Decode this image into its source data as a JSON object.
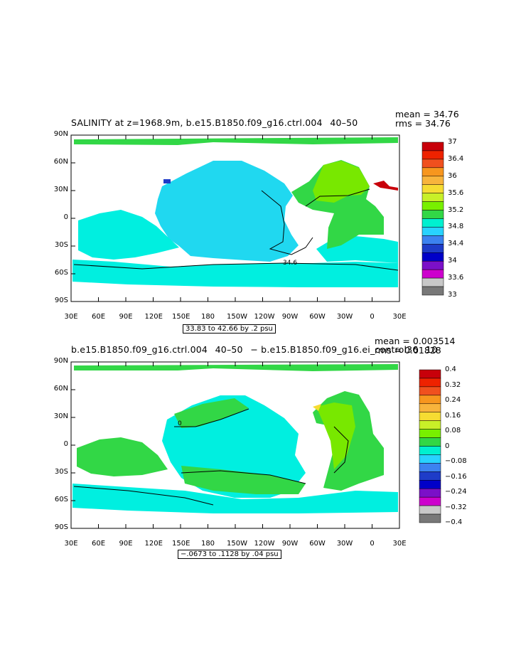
{
  "panel1": {
    "title": "SALINITY at z=1968.9m, b.e15.B1850.f09_g16.ctrl.004   40–50 ",
    "mean": "mean = 34.76",
    "rms": "rms = 34.76",
    "range": "33.83 to 42.66 by .2 psu",
    "contour_label": "34.6",
    "lat_labels": [
      "90N",
      "60N",
      "30N",
      "0",
      "30S",
      "60S",
      "90S"
    ],
    "lon_labels": [
      "30E",
      "60E",
      "90E",
      "120E",
      "150E",
      "180",
      "150W",
      "120W",
      "90W",
      "60W",
      "30W",
      "0",
      "30E"
    ],
    "colorbar_labels": [
      "37",
      "36.4",
      "36",
      "35.6",
      "35.2",
      "34.8",
      "34.4",
      "34",
      "33.6",
      "33"
    ],
    "colorbar_colors": [
      "#c8000a",
      "#ee2200",
      "#f0501e",
      "#f7961e",
      "#f8b43c",
      "#f6dc32",
      "#c8f028",
      "#78f000",
      "#32d746",
      "#00f0d0",
      "#28d2ff",
      "#3c82f0",
      "#1e3cc8",
      "#0000c8",
      "#7b10c8",
      "#cd00cd",
      "#c8c8c8",
      "#787878"
    ]
  },
  "panel2": {
    "title": "b.e15.B1850.f09_g16.ctrl.004  40–50  − b.e15.B1850.f09_g16.ei_control36  10",
    "mean": "mean = 0.003514",
    "rms": "rms = 0.01828",
    "range": "−.0673 to .1128 by .04 psu",
    "contour_label": "0",
    "lat_labels": [
      "90N",
      "60N",
      "30N",
      "0",
      "30S",
      "60S",
      "90S"
    ],
    "lon_labels": [
      "30E",
      "60E",
      "90E",
      "120E",
      "150E",
      "180",
      "150W",
      "120W",
      "90W",
      "60W",
      "30W",
      "0",
      "30E"
    ],
    "colorbar_labels": [
      "0.4",
      "0.32",
      "0.24",
      "0.16",
      "0.08",
      "0",
      "−0.08",
      "−0.16",
      "−0.24",
      "−0.32",
      "−0.4"
    ],
    "colorbar_colors": [
      "#c8000a",
      "#ee2200",
      "#f0501e",
      "#f7961e",
      "#f8b43c",
      "#f6dc32",
      "#c8f028",
      "#78f000",
      "#32d746",
      "#00f0d0",
      "#28d2ff",
      "#3c82f0",
      "#1e3cc8",
      "#0000c8",
      "#7b10c8",
      "#cd00cd",
      "#c8c8c8",
      "#787878"
    ]
  },
  "colors": {
    "pacific_fill": "#18dcf0",
    "southern_fill": "#00f0e0",
    "atlantic_fill": "#32d746",
    "atlantic_green": "#78e800",
    "red_blob": "#c8000a",
    "blue_blob": "#1e3cc8",
    "land": "#ffffff"
  }
}
